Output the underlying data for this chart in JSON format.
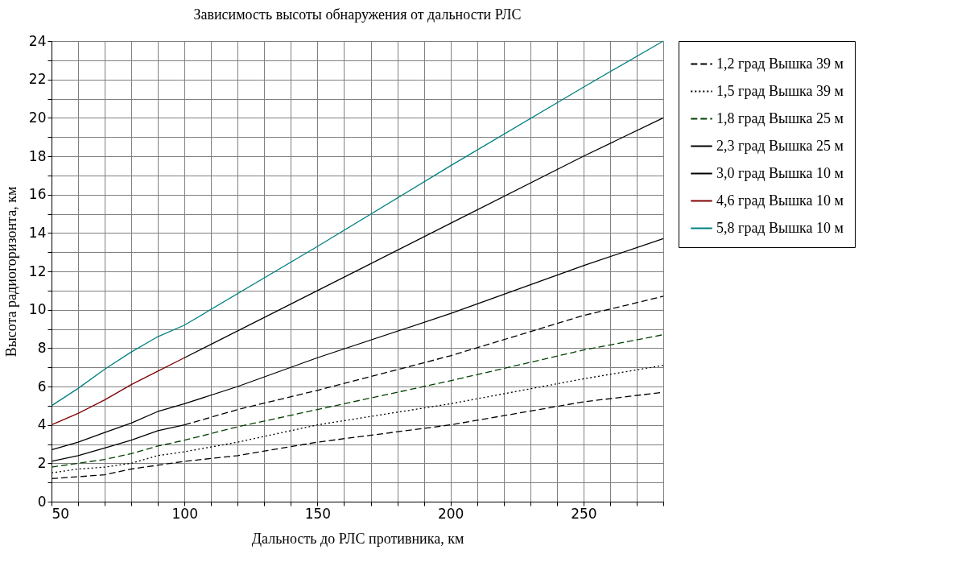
{
  "chart_data": {
    "type": "line",
    "title": "Зависимость высоты обнаружения от дальности РЛС",
    "xlabel": "Дальность до РЛС противника, км",
    "ylabel": "Высота радиогоризонта, км",
    "xlim": [
      50,
      280
    ],
    "ylim": [
      0,
      24
    ],
    "xticks": [
      50,
      {
        "value": 60,
        "label": null
      },
      {
        "value": 70,
        "label": null
      },
      {
        "value": 80,
        "label": null
      },
      {
        "value": 90,
        "label": null
      },
      100,
      {
        "value": 110,
        "label": null
      },
      {
        "value": 120,
        "label": null
      },
      {
        "value": 130,
        "label": null
      },
      {
        "value": 140,
        "label": null
      },
      150,
      {
        "value": 160,
        "label": null
      },
      {
        "value": 170,
        "label": null
      },
      {
        "value": 180,
        "label": null
      },
      {
        "value": 190,
        "label": null
      },
      200,
      {
        "value": 210,
        "label": null
      },
      {
        "value": 220,
        "label": null
      },
      {
        "value": 230,
        "label": null
      },
      {
        "value": 240,
        "label": null
      },
      250,
      {
        "value": 260,
        "label": null
      },
      {
        "value": 270,
        "label": null
      },
      {
        "value": 280,
        "label": null
      }
    ],
    "yticks": [
      0,
      {
        "value": 1,
        "label": null
      },
      2,
      {
        "value": 3,
        "label": null
      },
      4,
      {
        "value": 5,
        "label": null
      },
      6,
      {
        "value": 7,
        "label": null
      },
      8,
      {
        "value": 9,
        "label": null
      },
      10,
      {
        "value": 11,
        "label": null
      },
      12,
      {
        "value": 13,
        "label": null
      },
      14,
      {
        "value": 15,
        "label": null
      },
      16,
      {
        "value": 17,
        "label": null
      },
      18,
      {
        "value": 19,
        "label": null
      },
      20,
      {
        "value": 21,
        "label": null
      },
      22,
      {
        "value": 23,
        "label": null
      },
      24
    ],
    "grid": true,
    "legend": "right",
    "marker": "none",
    "series": [
      {
        "name": "1,2 град Вышка 39 м",
        "color": "#000000",
        "line_style": "dashed",
        "x": [
          50,
          60,
          70,
          80,
          90,
          100,
          120,
          150,
          200,
          250,
          280
        ],
        "values": [
          1.2,
          1.3,
          1.4,
          1.7,
          1.9,
          2.1,
          2.4,
          3.1,
          4.0,
          5.2,
          5.7
        ]
      },
      {
        "name": "1,5 град Вышка 39 м",
        "color": "#000000",
        "line_style": "dotted",
        "x": [
          50,
          60,
          70,
          80,
          90,
          100,
          120,
          150,
          200,
          250,
          280
        ],
        "values": [
          1.5,
          1.7,
          1.8,
          2.0,
          2.4,
          2.6,
          3.1,
          4.0,
          5.1,
          6.4,
          7.1
        ]
      },
      {
        "name": "1,8 град Вышка 25 м",
        "color": "#004000",
        "line_style": "dashed",
        "x": [
          50,
          60,
          70,
          80,
          90,
          100,
          120,
          150,
          200,
          250,
          280
        ],
        "values": [
          1.8,
          2.0,
          2.2,
          2.5,
          2.9,
          3.2,
          3.9,
          4.8,
          6.3,
          7.9,
          8.7
        ]
      },
      {
        "name": "2,3 град Вышка 25 м",
        "color": "#000000",
        "line_style": "solid",
        "x": [
          50,
          60,
          70,
          80,
          90,
          100
        ],
        "values": [
          2.1,
          2.4,
          2.8,
          3.2,
          3.7,
          4.0
        ]
      },
      {
        "name": "3,0 град Вышка 10 м",
        "color": "#000000",
        "line_style": "solid",
        "x": [
          50,
          60,
          70,
          80,
          90,
          100,
          120,
          150,
          200,
          250,
          280
        ],
        "values": [
          2.7,
          3.1,
          3.6,
          4.1,
          4.7,
          5.1,
          6.0,
          7.5,
          9.8,
          12.3,
          13.7
        ]
      },
      {
        "name": "4,6 град Вышка 10 м",
        "color": "#800000",
        "line_style": "solid",
        "x": [
          50,
          60,
          70,
          80,
          90,
          100
        ],
        "values": [
          4.0,
          4.6,
          5.3,
          6.1,
          6.8,
          7.5
        ]
      },
      {
        "name": "5,8 град Вышка 10 м",
        "color": "#008080",
        "line_style": "solid",
        "x": [
          50,
          60,
          70,
          80,
          90,
          100,
          150,
          200,
          250,
          280
        ],
        "values": [
          5.0,
          5.9,
          6.9,
          7.8,
          8.6,
          9.2,
          13.3,
          17.5,
          21.6,
          24.0
        ]
      },
      {
        "color": "#000000",
        "line_style": "dashed",
        "x": [
          100,
          120,
          150,
          200,
          250,
          280
        ],
        "values": [
          4.0,
          4.8,
          5.8,
          7.6,
          9.7,
          10.7
        ]
      },
      {
        "color": "#000000",
        "line_style": "solid",
        "x": [
          100,
          150,
          200,
          250,
          280
        ],
        "values": [
          7.5,
          11.0,
          14.5,
          18.0,
          20.0
        ]
      }
    ]
  }
}
